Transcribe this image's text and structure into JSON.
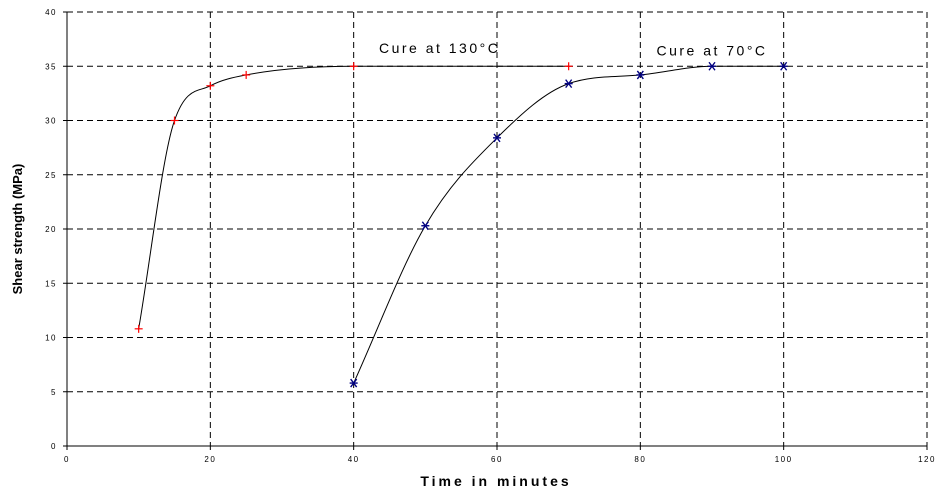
{
  "chart_data": {
    "type": "line",
    "xlabel": "Time in minutes",
    "ylabel": "Shear strength (MPa)",
    "xlim": [
      0,
      120
    ],
    "ylim": [
      0,
      40
    ],
    "x_ticks": [
      0,
      20,
      40,
      60,
      80,
      100,
      120
    ],
    "y_ticks": [
      0,
      5,
      10,
      15,
      20,
      25,
      30,
      35,
      40
    ],
    "x_tick_labels": [
      "0",
      "20",
      "40",
      "60",
      "80",
      "100",
      "120"
    ],
    "y_tick_labels": [
      "0",
      "5",
      "10",
      "15",
      "20",
      "25",
      "30",
      "35",
      "40"
    ],
    "grid": true,
    "series": [
      {
        "label": "Cure at 130°C",
        "marker": "plus",
        "marker_color": "#ff0000",
        "x": [
          10,
          15,
          20,
          25,
          40,
          70
        ],
        "y": [
          10.8,
          30,
          33.2,
          34.2,
          35,
          35
        ]
      },
      {
        "label": "Cure at 70°C",
        "marker": "asterisk",
        "marker_color": "#000080",
        "x": [
          40,
          50,
          60,
          70,
          80,
          90,
          100
        ],
        "y": [
          5.8,
          20.3,
          28.4,
          33.4,
          34.2,
          35,
          35
        ]
      }
    ]
  }
}
